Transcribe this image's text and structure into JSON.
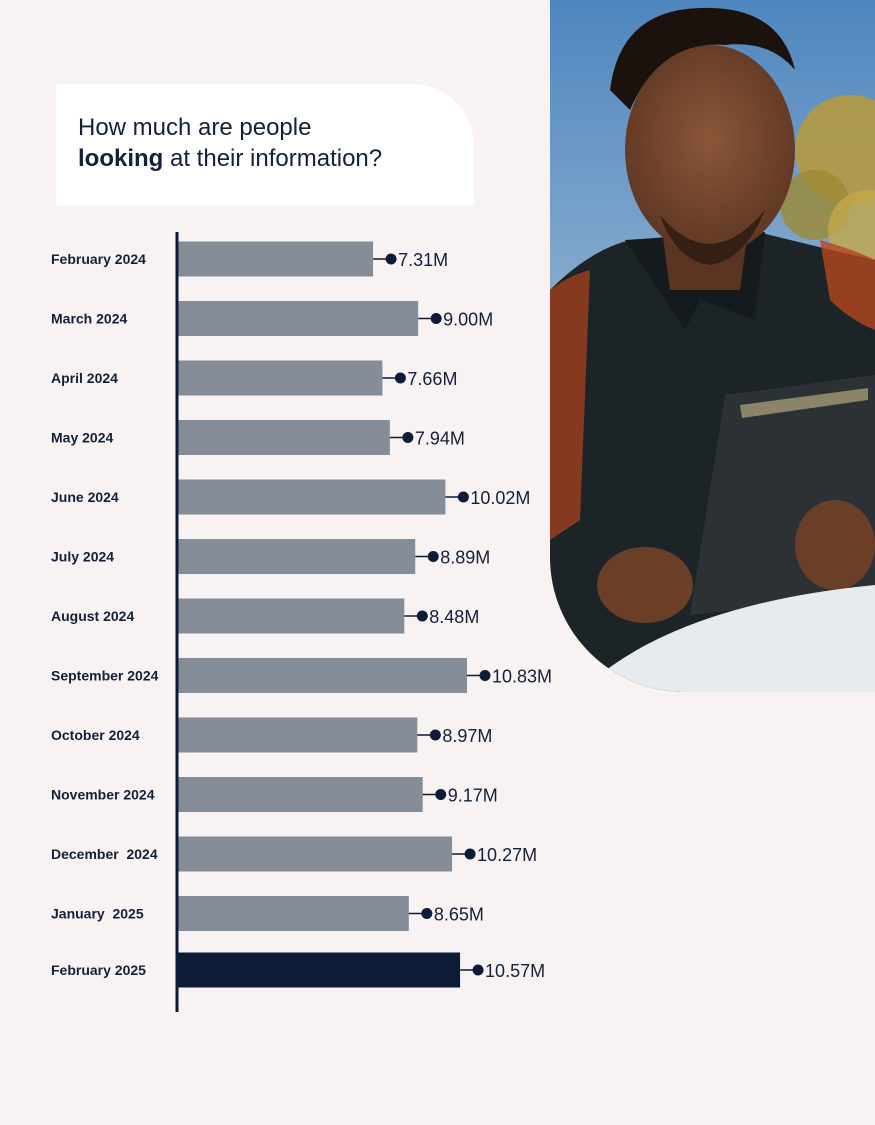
{
  "title": {
    "line1": "How much are people",
    "line2_bold": "looking",
    "line2_rest": " at their information?"
  },
  "photo": {
    "description_icon": "person-with-tablet-photo",
    "colors": {
      "sky": "#6f9ec7",
      "shirt": "#1d2428",
      "skin": "#7a4a32",
      "tablet": "#22272b"
    }
  },
  "colors": {
    "bar": "#858e98",
    "bar_highlight": "#0e1b36",
    "text": "#14203a",
    "axis": "#0e1b36",
    "background": "#f9f2f2"
  },
  "chart_data": {
    "type": "bar",
    "orientation": "horizontal",
    "title": "How much are people looking at their information?",
    "categories": [
      "February 2024",
      "March 2024",
      "April 2024",
      "May 2024",
      "June 2024",
      "July 2024",
      "August 2024",
      "September 2024",
      "October 2024",
      "November 2024",
      "December  2024",
      "January  2025",
      "February 2025"
    ],
    "values": [
      7.31,
      9.0,
      7.66,
      7.94,
      10.02,
      8.89,
      8.48,
      10.83,
      8.97,
      9.17,
      10.27,
      8.65,
      10.57
    ],
    "labels": [
      "7.31M",
      "9.00M",
      "7.66M",
      "7.94M",
      "10.02M",
      "8.89M",
      "8.48M",
      "10.83M",
      "8.97M",
      "9.17M",
      "10.27M",
      "8.65M",
      "10.57M"
    ],
    "highlight": "February 2025",
    "xlim": [
      0,
      10.83
    ],
    "grid": false,
    "legend": "none"
  }
}
